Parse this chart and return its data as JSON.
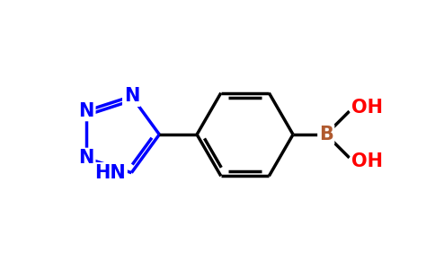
{
  "bg_color": "#ffffff",
  "bond_color": "#000000",
  "N_color": "#0000ff",
  "B_color": "#b05a2f",
  "OH_color": "#ff0000",
  "bond_width": 2.5,
  "font_size_atom": 15,
  "figsize": [
    4.84,
    3.0
  ],
  "dpi": 100,
  "xlim": [
    0,
    9.5
  ],
  "ylim": [
    0,
    5.8
  ]
}
